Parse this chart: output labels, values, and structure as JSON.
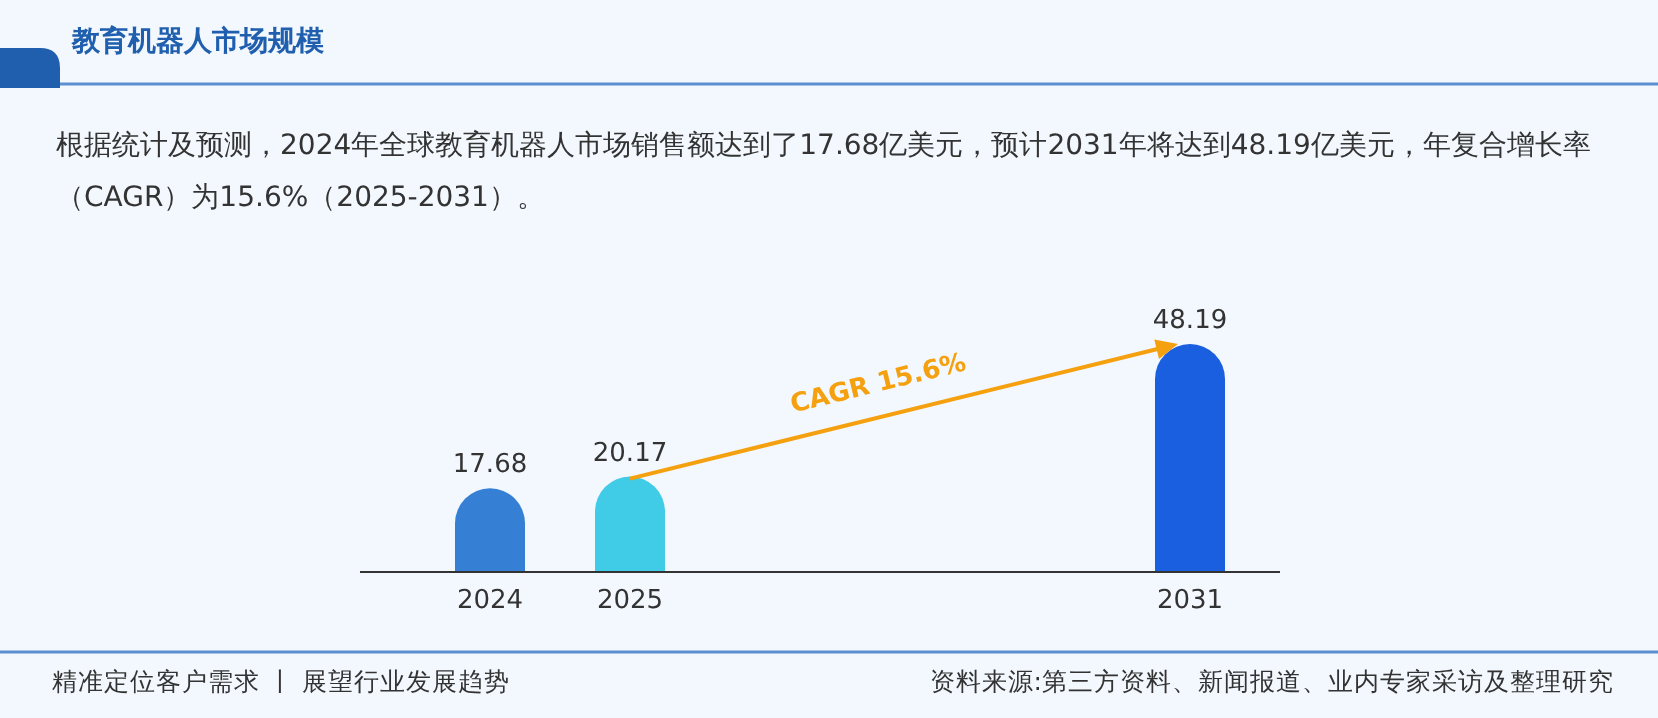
{
  "chart_data": {
    "type": "bar",
    "title": "教育机器人市场规模",
    "subtitle": "根据统计及预测，2024年全球教育机器人市场销售额达到了17.68亿美元，预计2031年将达到48.19亿美元，年复合增长率（CAGR）为15.6%（2025-2031）。",
    "categories": [
      "2024",
      "2025",
      null,
      null,
      null,
      "2031"
    ],
    "values": [
      17.68,
      20.17,
      null,
      null,
      null,
      48.19
    ],
    "colors": [
      "#3580d4",
      "#40cbe6",
      null,
      null,
      null,
      "#1a5fe0"
    ],
    "data_labels": true,
    "annotations": [
      "CAGR 15.6%",
      "精准定位客户需求 丨 展望行业发展趋势",
      "资料来源:第三方资料、新闻报道、业内专家采访及整理研究"
    ]
  }
}
